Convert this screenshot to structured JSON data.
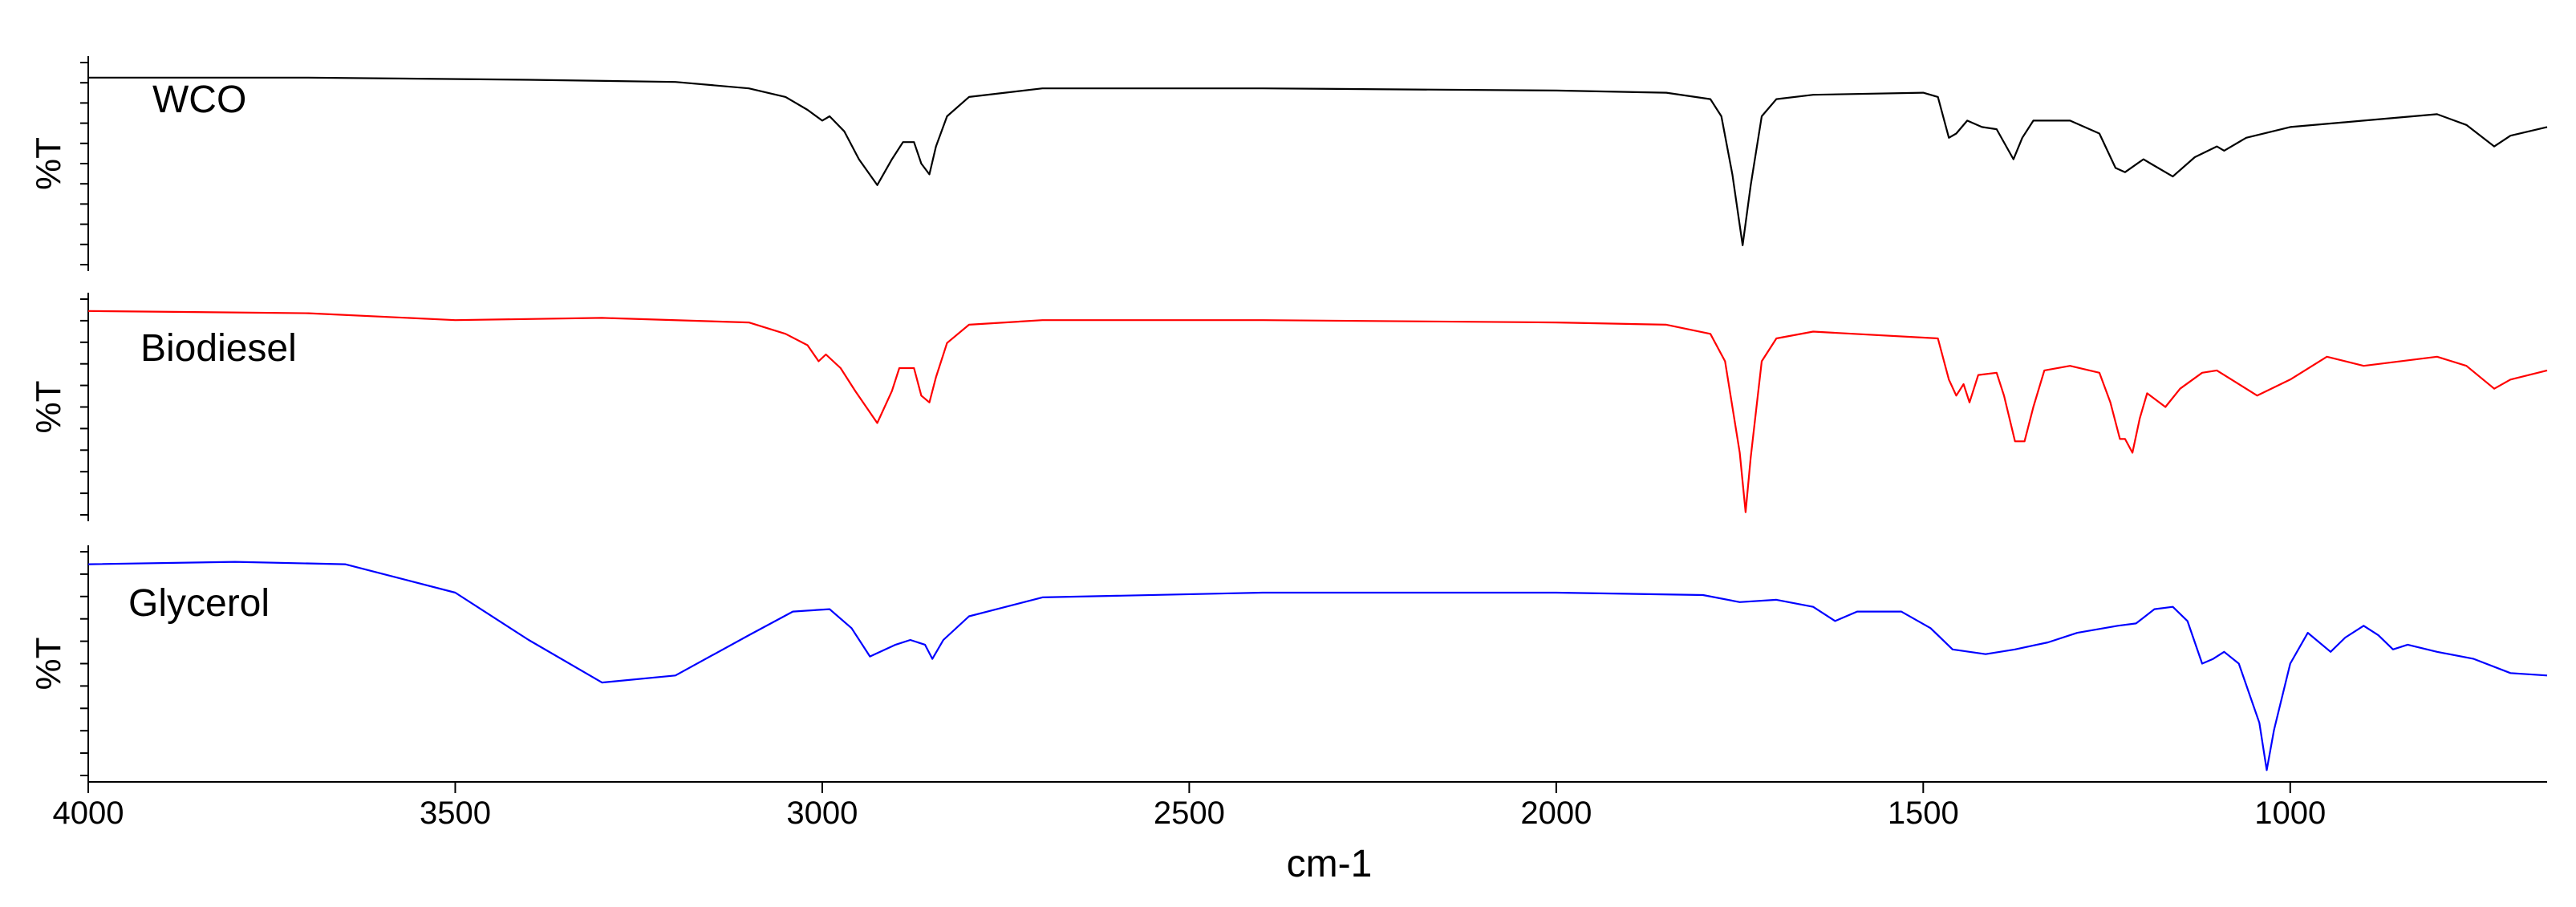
{
  "chart_data": {
    "type": "line",
    "layout": "stacked-panels",
    "xlabel": "cm-1",
    "x_reversed": true,
    "xlim": [
      4000,
      650
    ],
    "x_ticks": [
      4000,
      3500,
      3000,
      2500,
      2000,
      1500,
      1000
    ],
    "x_tick_labels": [
      "4000",
      "3500",
      "3000",
      "2500",
      "2000",
      "1500",
      "1000"
    ],
    "grid": false,
    "legend": "none",
    "panels": [
      {
        "name": "WCO",
        "ylabel": "%T",
        "color": "#000000",
        "ylim": [
          0,
          100
        ],
        "points": [
          [
            4000,
            90
          ],
          [
            3700,
            90
          ],
          [
            3400,
            89
          ],
          [
            3200,
            88
          ],
          [
            3100,
            85
          ],
          [
            3050,
            81
          ],
          [
            3020,
            75
          ],
          [
            3000,
            70
          ],
          [
            2990,
            72
          ],
          [
            2970,
            65
          ],
          [
            2950,
            52
          ],
          [
            2925,
            40
          ],
          [
            2905,
            52
          ],
          [
            2890,
            60
          ],
          [
            2875,
            60
          ],
          [
            2865,
            50
          ],
          [
            2854,
            45
          ],
          [
            2845,
            58
          ],
          [
            2830,
            72
          ],
          [
            2800,
            81
          ],
          [
            2700,
            85
          ],
          [
            2400,
            85
          ],
          [
            2000,
            84
          ],
          [
            1850,
            83
          ],
          [
            1790,
            80
          ],
          [
            1775,
            72
          ],
          [
            1760,
            45
          ],
          [
            1746,
            12
          ],
          [
            1735,
            40
          ],
          [
            1720,
            72
          ],
          [
            1700,
            80
          ],
          [
            1650,
            82
          ],
          [
            1500,
            83
          ],
          [
            1480,
            81
          ],
          [
            1465,
            62
          ],
          [
            1455,
            64
          ],
          [
            1440,
            70
          ],
          [
            1420,
            67
          ],
          [
            1400,
            66
          ],
          [
            1377,
            52
          ],
          [
            1365,
            62
          ],
          [
            1350,
            70
          ],
          [
            1300,
            70
          ],
          [
            1260,
            64
          ],
          [
            1238,
            48
          ],
          [
            1225,
            46
          ],
          [
            1200,
            52
          ],
          [
            1190,
            50
          ],
          [
            1160,
            44
          ],
          [
            1130,
            53
          ],
          [
            1100,
            58
          ],
          [
            1090,
            56
          ],
          [
            1060,
            62
          ],
          [
            1000,
            67
          ],
          [
            900,
            70
          ],
          [
            800,
            73
          ],
          [
            760,
            68
          ],
          [
            722,
            58
          ],
          [
            700,
            63
          ],
          [
            650,
            67
          ]
        ]
      },
      {
        "name": "Biodiesel",
        "ylabel": "%T",
        "color": "#ff0000",
        "ylim": [
          0,
          100
        ],
        "points": [
          [
            4000,
            92
          ],
          [
            3700,
            91
          ],
          [
            3500,
            88
          ],
          [
            3300,
            89
          ],
          [
            3100,
            87
          ],
          [
            3050,
            82
          ],
          [
            3020,
            77
          ],
          [
            3005,
            70
          ],
          [
            2995,
            73
          ],
          [
            2975,
            67
          ],
          [
            2955,
            57
          ],
          [
            2925,
            43
          ],
          [
            2905,
            57
          ],
          [
            2895,
            67
          ],
          [
            2875,
            67
          ],
          [
            2865,
            55
          ],
          [
            2854,
            52
          ],
          [
            2845,
            63
          ],
          [
            2830,
            78
          ],
          [
            2800,
            86
          ],
          [
            2700,
            88
          ],
          [
            2400,
            88
          ],
          [
            2000,
            87
          ],
          [
            1850,
            86
          ],
          [
            1790,
            82
          ],
          [
            1770,
            70
          ],
          [
            1750,
            30
          ],
          [
            1742,
            4
          ],
          [
            1735,
            28
          ],
          [
            1720,
            70
          ],
          [
            1700,
            80
          ],
          [
            1650,
            83
          ],
          [
            1480,
            80
          ],
          [
            1465,
            62
          ],
          [
            1455,
            55
          ],
          [
            1445,
            60
          ],
          [
            1437,
            52
          ],
          [
            1425,
            64
          ],
          [
            1400,
            65
          ],
          [
            1390,
            55
          ],
          [
            1375,
            35
          ],
          [
            1362,
            35
          ],
          [
            1350,
            50
          ],
          [
            1335,
            66
          ],
          [
            1300,
            68
          ],
          [
            1260,
            65
          ],
          [
            1245,
            52
          ],
          [
            1232,
            36
          ],
          [
            1225,
            36
          ],
          [
            1215,
            30
          ],
          [
            1205,
            45
          ],
          [
            1195,
            56
          ],
          [
            1170,
            50
          ],
          [
            1150,
            58
          ],
          [
            1120,
            65
          ],
          [
            1100,
            66
          ],
          [
            1080,
            62
          ],
          [
            1045,
            55
          ],
          [
            1000,
            62
          ],
          [
            950,
            72
          ],
          [
            900,
            68
          ],
          [
            800,
            72
          ],
          [
            760,
            68
          ],
          [
            722,
            58
          ],
          [
            700,
            62
          ],
          [
            650,
            66
          ]
        ]
      },
      {
        "name": "Glycerol",
        "ylabel": "%T",
        "color": "#0000ff",
        "ylim": [
          0,
          100
        ],
        "points": [
          [
            4000,
            92
          ],
          [
            3800,
            93
          ],
          [
            3650,
            92
          ],
          [
            3500,
            80
          ],
          [
            3400,
            60
          ],
          [
            3300,
            42
          ],
          [
            3200,
            45
          ],
          [
            3100,
            62
          ],
          [
            3040,
            72
          ],
          [
            2990,
            73
          ],
          [
            2960,
            65
          ],
          [
            2935,
            53
          ],
          [
            2900,
            58
          ],
          [
            2880,
            60
          ],
          [
            2860,
            58
          ],
          [
            2850,
            52
          ],
          [
            2835,
            60
          ],
          [
            2800,
            70
          ],
          [
            2700,
            78
          ],
          [
            2400,
            80
          ],
          [
            2000,
            80
          ],
          [
            1800,
            79
          ],
          [
            1750,
            76
          ],
          [
            1700,
            77
          ],
          [
            1650,
            74
          ],
          [
            1620,
            68
          ],
          [
            1590,
            72
          ],
          [
            1530,
            72
          ],
          [
            1490,
            65
          ],
          [
            1460,
            56
          ],
          [
            1415,
            54
          ],
          [
            1375,
            56
          ],
          [
            1330,
            59
          ],
          [
            1290,
            63
          ],
          [
            1235,
            66
          ],
          [
            1210,
            67
          ],
          [
            1185,
            73
          ],
          [
            1160,
            74
          ],
          [
            1140,
            68
          ],
          [
            1120,
            50
          ],
          [
            1105,
            52
          ],
          [
            1090,
            55
          ],
          [
            1070,
            50
          ],
          [
            1042,
            25
          ],
          [
            1032,
            5
          ],
          [
            1022,
            22
          ],
          [
            1000,
            50
          ],
          [
            976,
            63
          ],
          [
            945,
            55
          ],
          [
            925,
            61
          ],
          [
            900,
            66
          ],
          [
            880,
            62
          ],
          [
            860,
            56
          ],
          [
            840,
            58
          ],
          [
            800,
            55
          ],
          [
            750,
            52
          ],
          [
            700,
            46
          ],
          [
            650,
            45
          ]
        ]
      }
    ]
  }
}
